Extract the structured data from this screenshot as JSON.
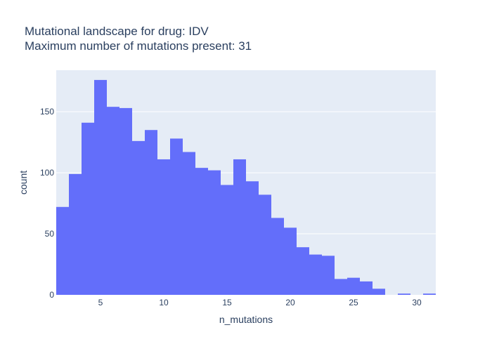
{
  "chart_data": {
    "type": "bar",
    "title_line1": "Mutational landscape for drug: IDV",
    "title_line2": "Maximum number of mutations present: 31",
    "xlabel": "n_mutations",
    "ylabel": "count",
    "xlim": [
      1.5,
      31.5
    ],
    "ylim": [
      0,
      184
    ],
    "x_ticks": [
      5,
      10,
      15,
      20,
      25,
      30
    ],
    "y_ticks": [
      0,
      50,
      100,
      150
    ],
    "grid": true,
    "x": [
      2,
      3,
      4,
      5,
      6,
      7,
      8,
      9,
      10,
      11,
      12,
      13,
      14,
      15,
      16,
      17,
      18,
      19,
      20,
      21,
      22,
      23,
      24,
      25,
      26,
      27,
      28,
      29,
      30,
      31
    ],
    "values": [
      72,
      99,
      141,
      176,
      154,
      153,
      126,
      135,
      111,
      128,
      117,
      104,
      102,
      90,
      111,
      93,
      82,
      63,
      55,
      39,
      33,
      32,
      13,
      14,
      11,
      5,
      0,
      1,
      0,
      1
    ],
    "bar_color": "#636efa",
    "plot_bg": "#e5ecf6"
  }
}
